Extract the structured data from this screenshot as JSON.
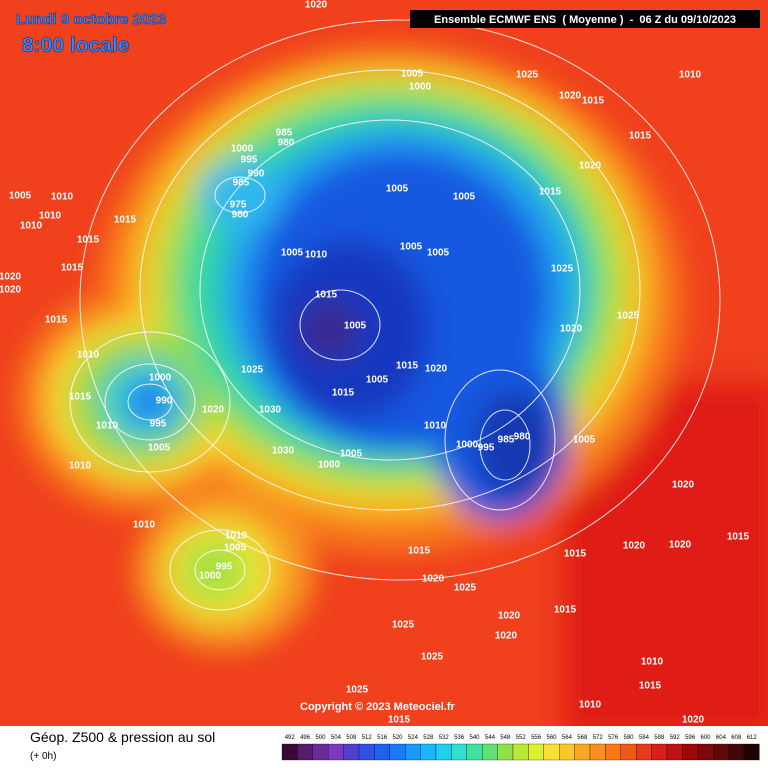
{
  "header": {
    "date": "Lundi 9 octobre 2023",
    "time": "8:00 locale",
    "model": "Ensemble ECMWF ENS  ( Moyenne )  -  06 Z du 09/10/2023"
  },
  "copyright": "Copyright © 2023 Meteociel.fr",
  "legend": {
    "title": "Géop. Z500 & pression au sol",
    "run": "(+ 0h)",
    "scale": [
      492,
      496,
      500,
      504,
      508,
      512,
      516,
      520,
      524,
      528,
      532,
      536,
      540,
      544,
      548,
      552,
      556,
      560,
      564,
      568,
      572,
      576,
      580,
      584,
      588,
      592,
      596,
      600,
      604,
      608,
      612
    ]
  },
  "pressure_labels": [
    1020,
    1005,
    1000,
    1025,
    1010,
    1020,
    1015,
    985,
    980,
    1000,
    995,
    990,
    985,
    975,
    980,
    1015,
    1020,
    1005,
    1005,
    1015,
    1010,
    1005,
    1010,
    1010,
    1015,
    1015,
    1005,
    1005,
    1005,
    1010,
    1025,
    1015,
    1020,
    1020,
    1015,
    1005,
    1025,
    1020,
    1015,
    1010,
    1025,
    1005,
    1015,
    1020,
    1000,
    990,
    995,
    1015,
    1010,
    1020,
    1030,
    1015,
    1010,
    1000,
    995,
    985,
    980,
    1005,
    1005,
    1030,
    1005,
    1000,
    1010,
    1020,
    1010,
    1010,
    1005,
    995,
    1000,
    1015,
    1015,
    1020,
    1020,
    1025,
    1015,
    1020,
    1025,
    1020,
    1025,
    1010,
    1015,
    1025,
    1015,
    1010,
    1020,
    1015,
    1020
  ]
}
